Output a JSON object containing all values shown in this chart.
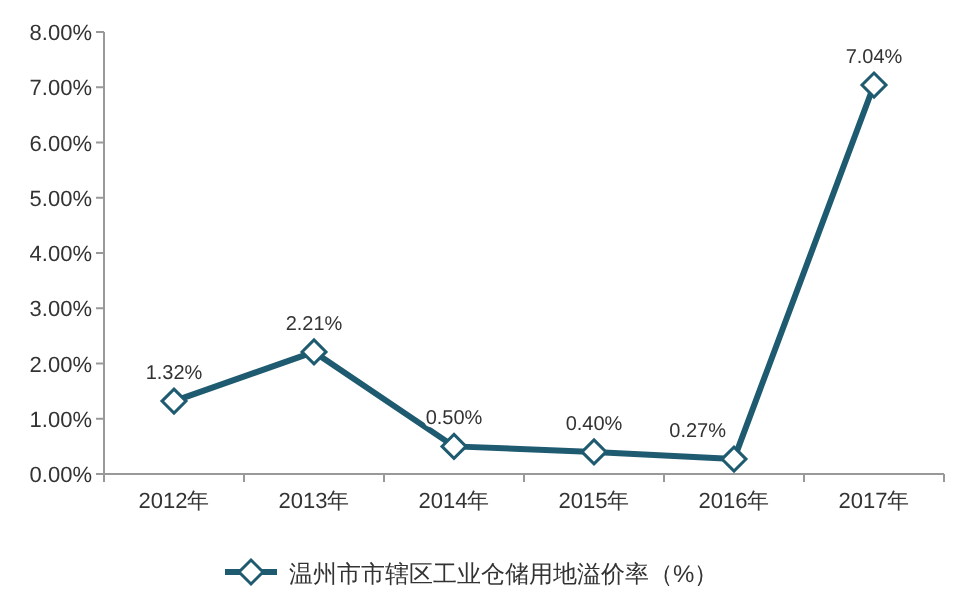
{
  "chart_data": {
    "type": "line",
    "categories": [
      "2012年",
      "2013年",
      "2014年",
      "2015年",
      "2016年",
      "2017年"
    ],
    "series": [
      {
        "name": "温州市市辖区工业仓储用地溢价率（%）",
        "color": "#1f5b70",
        "values": [
          1.32,
          2.21,
          0.5,
          0.4,
          0.27,
          7.04
        ],
        "value_labels": [
          "1.32%",
          "2.21%",
          "0.50%",
          "0.40%",
          "0.27%",
          "7.04%"
        ]
      }
    ],
    "ylim": [
      0,
      8
    ],
    "yticks": [
      {
        "value": 0,
        "label": "0.00%"
      },
      {
        "value": 1,
        "label": "1.00%"
      },
      {
        "value": 2,
        "label": "2.00%"
      },
      {
        "value": 3,
        "label": "3.00%"
      },
      {
        "value": 4,
        "label": "4.00%"
      },
      {
        "value": 5,
        "label": "5.00%"
      },
      {
        "value": 6,
        "label": "6.00%"
      },
      {
        "value": 7,
        "label": "7.00%"
      },
      {
        "value": 8,
        "label": "8.00%"
      }
    ],
    "marker": "diamond",
    "line_style": "solid",
    "grid": false,
    "legend": "bottom"
  }
}
